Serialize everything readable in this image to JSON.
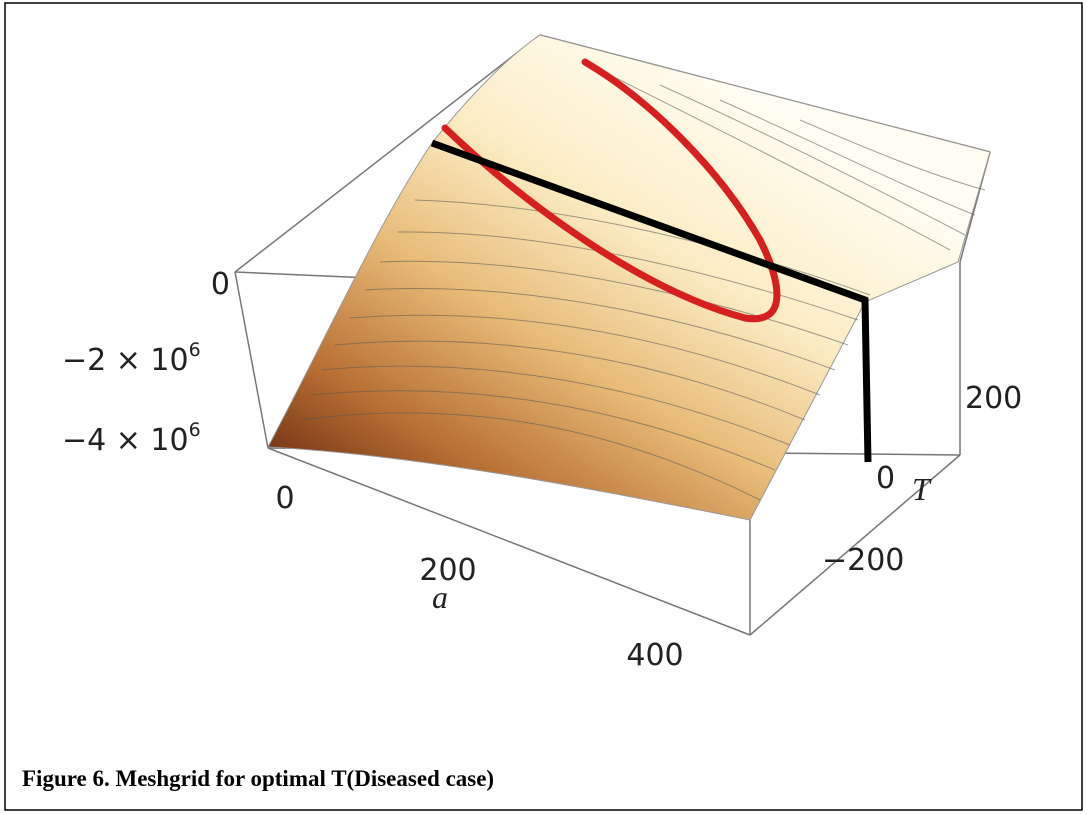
{
  "figure": {
    "z_ticks": [
      {
        "text": "0"
      },
      {
        "text": "−2 × 10",
        "exponent": "6"
      },
      {
        "text": "−4 × 10",
        "exponent": "6"
      }
    ],
    "a_ticks": [
      "0",
      "200",
      "400"
    ],
    "a_label": "a",
    "t_ticks": [
      "200",
      "0",
      "−200"
    ],
    "t_label": "T",
    "caption": "Figure 6. Meshgrid for optimal T(Diseased case)"
  }
}
